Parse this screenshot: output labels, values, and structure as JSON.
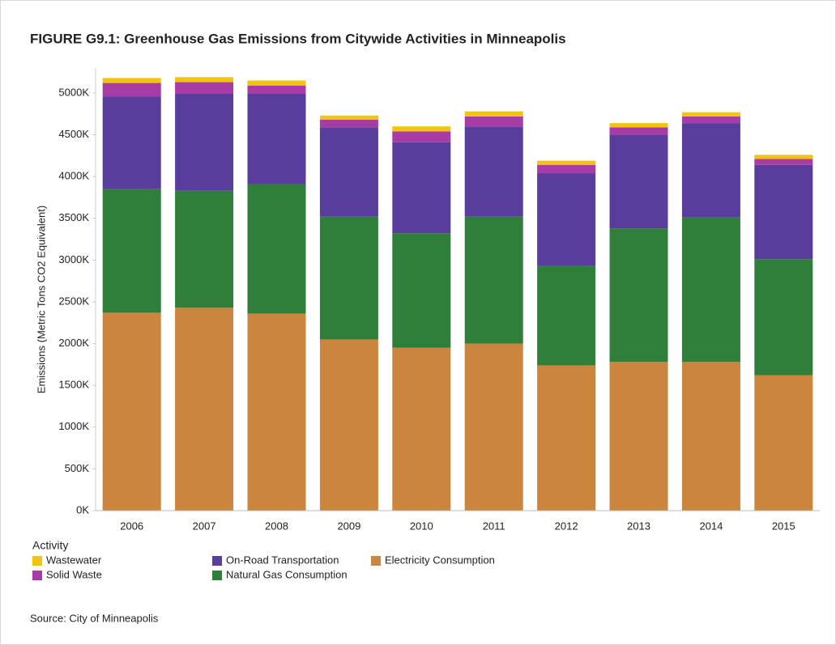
{
  "chart_data": {
    "type": "stacked_bar",
    "title": "FIGURE G9.1: Greenhouse Gas Emissions from Citywide Activities in Minneapolis",
    "y_label": "Emissions (Metric Tons CO2 Equivalent)",
    "legend_title": "Activity",
    "source": "Source: City of Minneapolis",
    "categories": [
      "2006",
      "2007",
      "2008",
      "2009",
      "2010",
      "2011",
      "2012",
      "2013",
      "2014",
      "2015"
    ],
    "series": [
      {
        "name": "Wastewater",
        "color": "#f2c311",
        "values": [
          60000,
          60000,
          60000,
          50000,
          60000,
          60000,
          50000,
          50000,
          50000,
          50000
        ]
      },
      {
        "name": "Solid Waste",
        "color": "#a83ba6",
        "values": [
          160000,
          140000,
          100000,
          90000,
          130000,
          120000,
          100000,
          90000,
          80000,
          70000
        ]
      },
      {
        "name": "On-Road Transportation",
        "color": "#583d9d",
        "values": [
          1110000,
          1160000,
          1080000,
          1070000,
          1090000,
          1080000,
          1110000,
          1120000,
          1130000,
          1130000
        ]
      },
      {
        "name": "Natural Gas Consumption",
        "color": "#2f7f3b",
        "values": [
          1480000,
          1400000,
          1550000,
          1470000,
          1370000,
          1520000,
          1190000,
          1600000,
          1730000,
          1390000
        ]
      },
      {
        "name": "Electricity Consumption",
        "color": "#cc853e",
        "values": [
          2370000,
          2430000,
          2360000,
          2050000,
          1950000,
          2000000,
          1740000,
          1780000,
          1780000,
          1620000
        ]
      }
    ],
    "ylim": [
      0,
      5300000
    ],
    "yticks": [
      {
        "value": 0,
        "label": "0K"
      },
      {
        "value": 500000,
        "label": "500K"
      },
      {
        "value": 1000000,
        "label": "1000K"
      },
      {
        "value": 1500000,
        "label": "1500K"
      },
      {
        "value": 2000000,
        "label": "2000K"
      },
      {
        "value": 2500000,
        "label": "2500K"
      },
      {
        "value": 3000000,
        "label": "3000K"
      },
      {
        "value": 3500000,
        "label": "3500K"
      },
      {
        "value": 4000000,
        "label": "4000K"
      },
      {
        "value": 4500000,
        "label": "4500K"
      },
      {
        "value": 5000000,
        "label": "5000K"
      }
    ],
    "grid": false
  }
}
